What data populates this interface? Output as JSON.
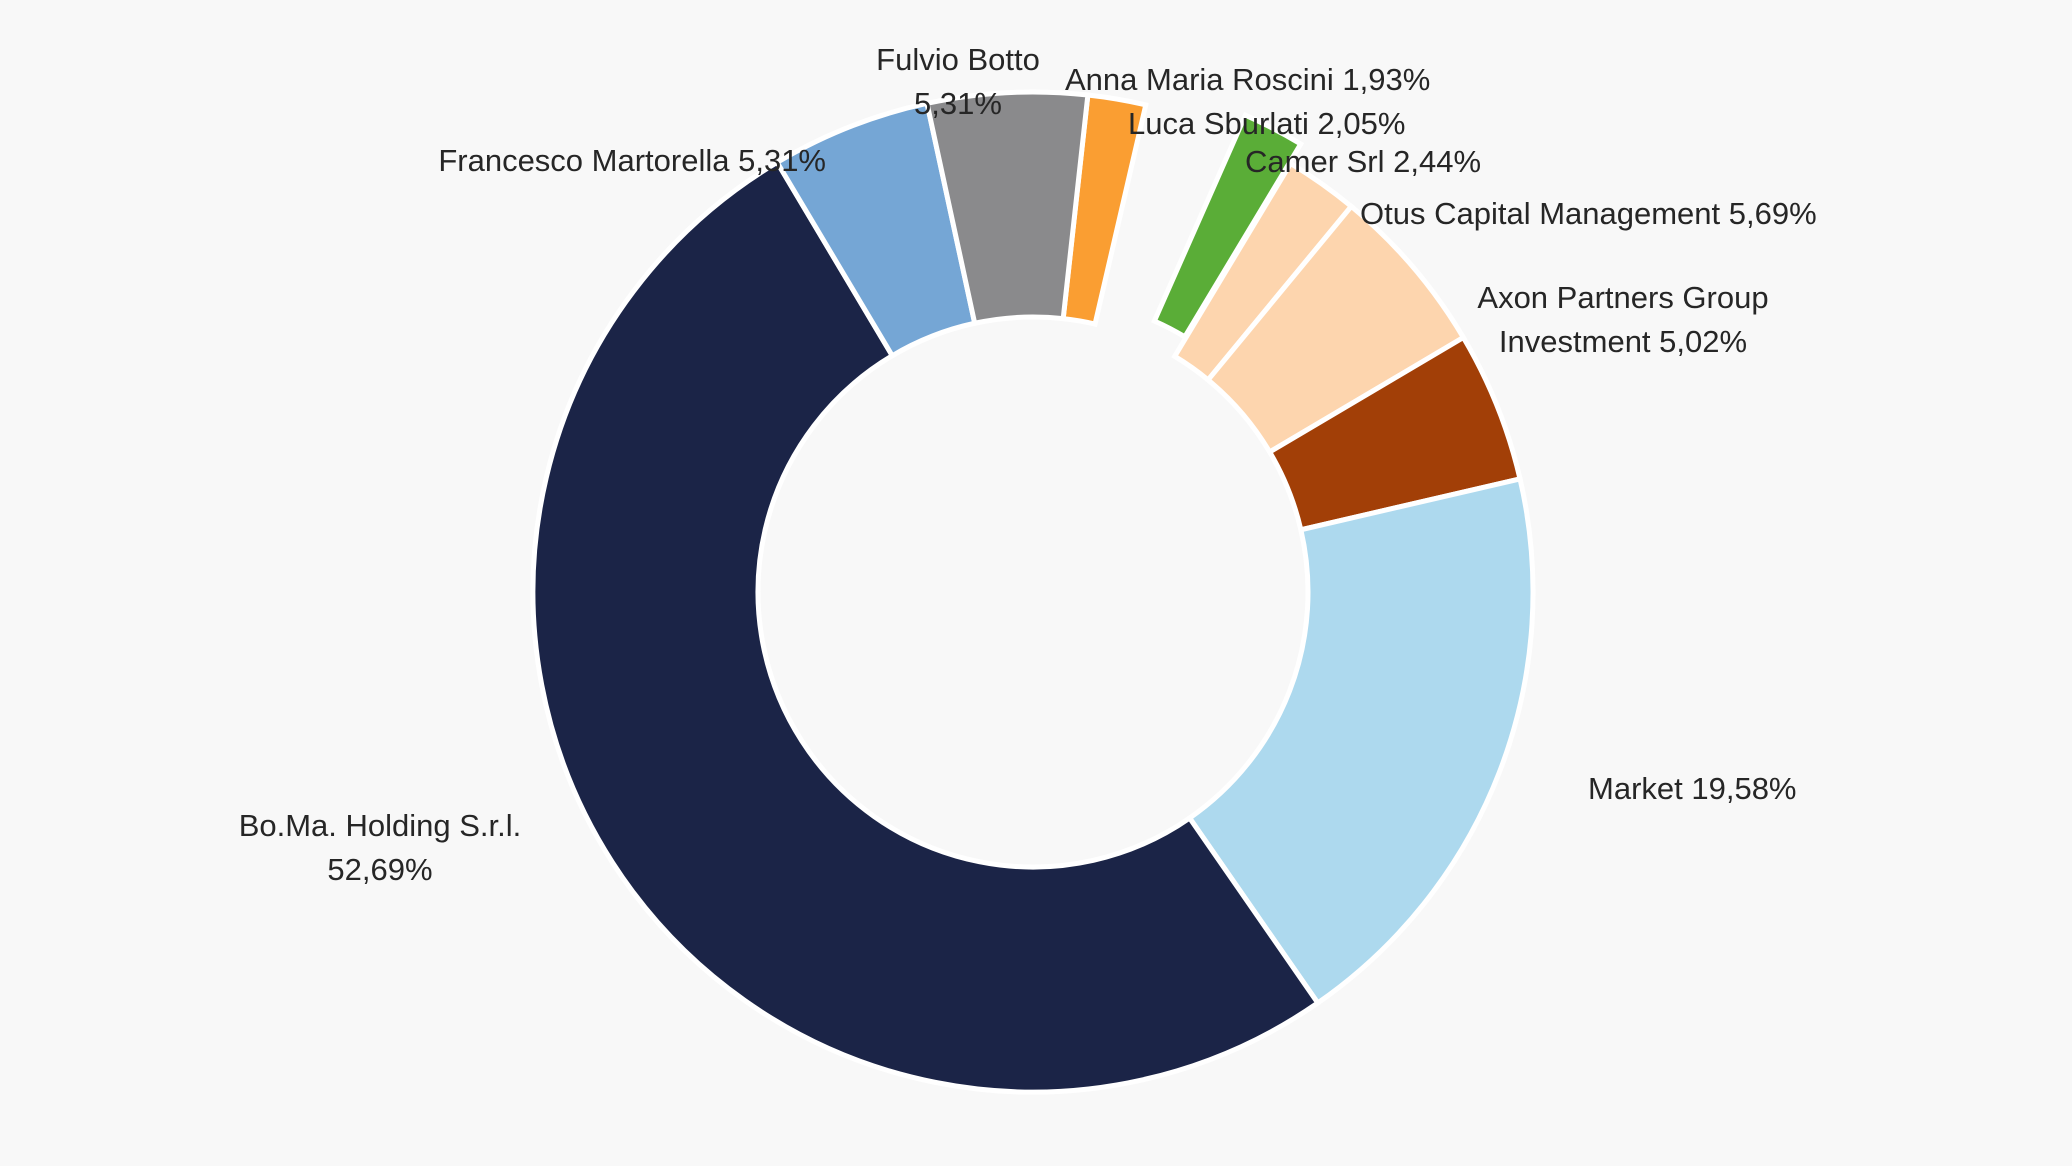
{
  "chart_data": {
    "type": "pie",
    "variant": "donut",
    "title": "",
    "legend": "none",
    "series": [
      {
        "name": "",
        "slices": [
          {
            "label": "Anna Maria Roscini",
            "value": 1.93,
            "display": "1,93%",
            "color": "#fa9e32",
            "exploded": false,
            "label_lines": [
              "Anna Maria Roscini 1,93%"
            ]
          },
          {
            "label": "",
            "value": 3.1,
            "display": "",
            "color": "transparent",
            "exploded": false,
            "label_lines": []
          },
          {
            "label": "Luca Sburlati",
            "value": 2.05,
            "display": "2,05%",
            "color": "#5aad37",
            "exploded": true,
            "label_lines": [
              "Luca Sburlati 2,05%"
            ]
          },
          {
            "label": "Camer Srl",
            "value": 2.44,
            "display": "2,44%",
            "color": "#fdd5ae",
            "exploded": false,
            "label_lines": [
              "Camer Srl 2,44%"
            ]
          },
          {
            "label": "Otus Capital Management",
            "value": 5.69,
            "display": "5,69%",
            "color": "#fdd5ae",
            "exploded": false,
            "label_lines": [
              "Otus Capital Management 5,69%"
            ]
          },
          {
            "label": "Axon Partners Group Investment",
            "value": 5.02,
            "display": "5,02%",
            "color": "#a23f07",
            "exploded": false,
            "label_lines": [
              "Axon Partners Group",
              "Investment 5,02%"
            ]
          },
          {
            "label": "Market",
            "value": 19.58,
            "display": "19,58%",
            "color": "#add9ee",
            "exploded": false,
            "label_lines": [
              "Market 19,58%"
            ]
          },
          {
            "label": "Bo.Ma. Holding S.r.l.",
            "value": 52.69,
            "display": "52,69%",
            "color": "#1b2447",
            "exploded": false,
            "label_lines": [
              "Bo.Ma. Holding S.r.l.",
              "52,69%"
            ]
          },
          {
            "label": "Francesco Martorella",
            "value": 5.31,
            "display": "5,31%",
            "color": "#75a6d5",
            "exploded": false,
            "label_lines": [
              "Francesco Martorella 5,31%"
            ]
          },
          {
            "label": "Fulvio Botto",
            "value": 5.31,
            "display": "5,31%",
            "color": "#8a8a8c",
            "exploded": false,
            "label_lines": [
              "Fulvio Botto",
              "5,31%"
            ]
          }
        ]
      }
    ]
  }
}
